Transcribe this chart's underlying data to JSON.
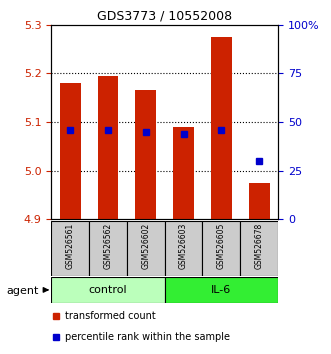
{
  "title": "GDS3773 / 10552008",
  "samples": [
    "GSM526561",
    "GSM526562",
    "GSM526602",
    "GSM526603",
    "GSM526605",
    "GSM526678"
  ],
  "bar_tops": [
    5.18,
    5.195,
    5.165,
    5.09,
    5.275,
    4.975
  ],
  "bar_bottom": 4.9,
  "percentile_values": [
    46,
    46,
    45,
    44,
    46,
    30
  ],
  "percentile_color": "#0000cc",
  "bar_color": "#cc2200",
  "ylim": [
    4.9,
    5.3
  ],
  "yticks": [
    4.9,
    5.0,
    5.1,
    5.2,
    5.3
  ],
  "grid_yticks": [
    5.0,
    5.1,
    5.2
  ],
  "right_ylim": [
    0,
    100
  ],
  "right_yticks": [
    0,
    25,
    50,
    75,
    100
  ],
  "right_yticklabels": [
    "0",
    "25",
    "50",
    "75",
    "100%"
  ],
  "groups": [
    {
      "label": "control",
      "indices": [
        0,
        1,
        2
      ],
      "color": "#bbffbb"
    },
    {
      "label": "IL-6",
      "indices": [
        3,
        4,
        5
      ],
      "color": "#33ee33"
    }
  ],
  "agent_label": "agent",
  "legend_items": [
    {
      "label": "transformed count",
      "color": "#cc2200"
    },
    {
      "label": "percentile rank within the sample",
      "color": "#0000cc"
    }
  ],
  "background_color": "#ffffff",
  "plot_bg": "#ffffff",
  "bar_width": 0.55,
  "left_tick_color": "#cc2200",
  "right_tick_color": "#0000cc",
  "sample_box_color": "#cccccc",
  "xlim": [
    -0.5,
    5.5
  ]
}
